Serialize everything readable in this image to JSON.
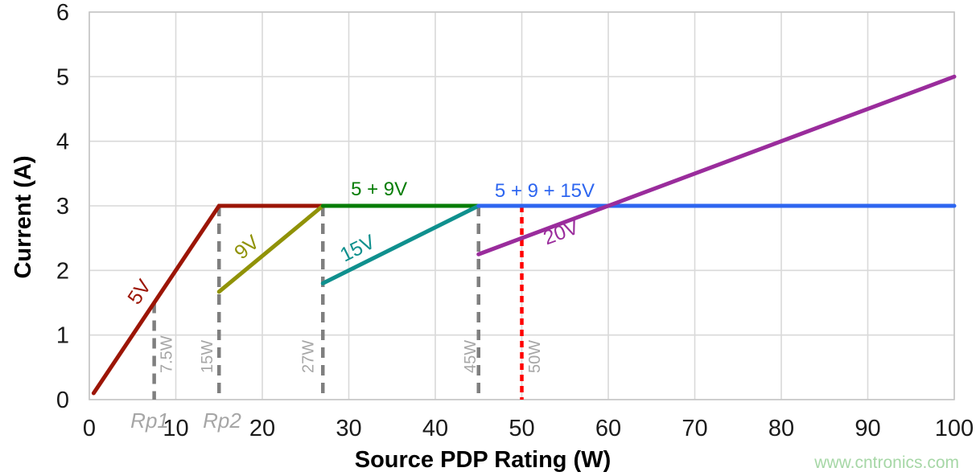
{
  "page": {
    "background": "#ffffff"
  },
  "watermark": {
    "text": "www.cntronics.com",
    "color": "#a6d7a6"
  },
  "chart_data": {
    "type": "line",
    "title": "",
    "xlabel": "Source PDP Rating (W)",
    "ylabel": "Current (A)",
    "xlim": [
      0,
      100
    ],
    "ylim": [
      0,
      6
    ],
    "x_ticks": [
      0,
      10,
      20,
      30,
      40,
      50,
      60,
      70,
      80,
      90,
      100
    ],
    "y_ticks": [
      0,
      1,
      2,
      3,
      4,
      5,
      6
    ],
    "grid": true,
    "legend_position": "none",
    "grid_color": "#d9d9d9",
    "border_color": "#c6c6c6",
    "tick_color": "#1a1a1a",
    "series": [
      {
        "name": "5V",
        "color": "#9c1506",
        "points": [
          [
            0.5,
            0.1
          ],
          [
            15,
            3
          ],
          [
            27,
            3
          ]
        ],
        "label": {
          "text": "5V",
          "x": 6.42,
          "y": 1.61,
          "angle": -56,
          "size": 25
        }
      },
      {
        "name": "9V",
        "color": "#909207",
        "points": [
          [
            15,
            1.67
          ],
          [
            27,
            3
          ]
        ],
        "label": {
          "text": "9V",
          "x": 18.7,
          "y": 2.28,
          "angle": -40,
          "size": 25
        }
      },
      {
        "name": "5 + 9V",
        "color": "#077d07",
        "points": [
          [
            27,
            3
          ],
          [
            45,
            3
          ]
        ],
        "label": {
          "text": "5 + 9V",
          "x": 33.5,
          "y": 3.16,
          "angle": 0,
          "size": 24
        }
      },
      {
        "name": "15V",
        "color": "#0f908e",
        "points": [
          [
            27,
            1.8
          ],
          [
            45,
            3
          ]
        ],
        "label": {
          "text": "15V",
          "x": 31.35,
          "y": 2.25,
          "angle": -26.5,
          "size": 25
        }
      },
      {
        "name": "5 + 9 + 15V",
        "color": "#2e66f0",
        "points": [
          [
            45,
            3
          ],
          [
            100,
            3
          ]
        ],
        "label": {
          "text": "5 + 9 + 15V",
          "x": 52.65,
          "y": 3.14,
          "angle": 0,
          "size": 24
        }
      },
      {
        "name": "20V",
        "color": "#9a2c9c",
        "points": [
          [
            45,
            2.25
          ],
          [
            100,
            5
          ]
        ],
        "label": {
          "text": "20V",
          "x": 54.8,
          "y": 2.49,
          "angle": -20.5,
          "size": 25
        }
      }
    ],
    "markers": [
      {
        "x": 7.5,
        "y_top": 1.5,
        "color": "#7f7f7f",
        "dash": "13 9",
        "label": "7.5W",
        "label_anchor_x": 9.55,
        "label_color": "#a6a6a6"
      },
      {
        "x": 15,
        "y_top": 3,
        "color": "#7f7f7f",
        "dash": "13 9",
        "label": "15W",
        "label_anchor_x": 14.25,
        "label_color": "#a6a6a6"
      },
      {
        "x": 27,
        "y_top": 3,
        "color": "#7f7f7f",
        "dash": "13 9",
        "label": "27W",
        "label_anchor_x": 25.9,
        "label_color": "#a6a6a6"
      },
      {
        "x": 45,
        "y_top": 3,
        "color": "#7f7f7f",
        "dash": "13 9",
        "label": "45W",
        "label_anchor_x": 44.65,
        "label_color": "#a6a6a6"
      },
      {
        "x": 50,
        "y_top": 3,
        "color": "#ff0000",
        "dash": "8 6",
        "label": "50W",
        "label_anchor_x": 52.1,
        "label_color": "#a6a6a6"
      }
    ],
    "axis_annotations": [
      {
        "text": "Rp1",
        "x": 6.98,
        "color": "#a6a6a6",
        "style": "italic"
      },
      {
        "text": "Rp2",
        "x": 15.35,
        "color": "#a6a6a6",
        "style": "italic"
      }
    ]
  }
}
